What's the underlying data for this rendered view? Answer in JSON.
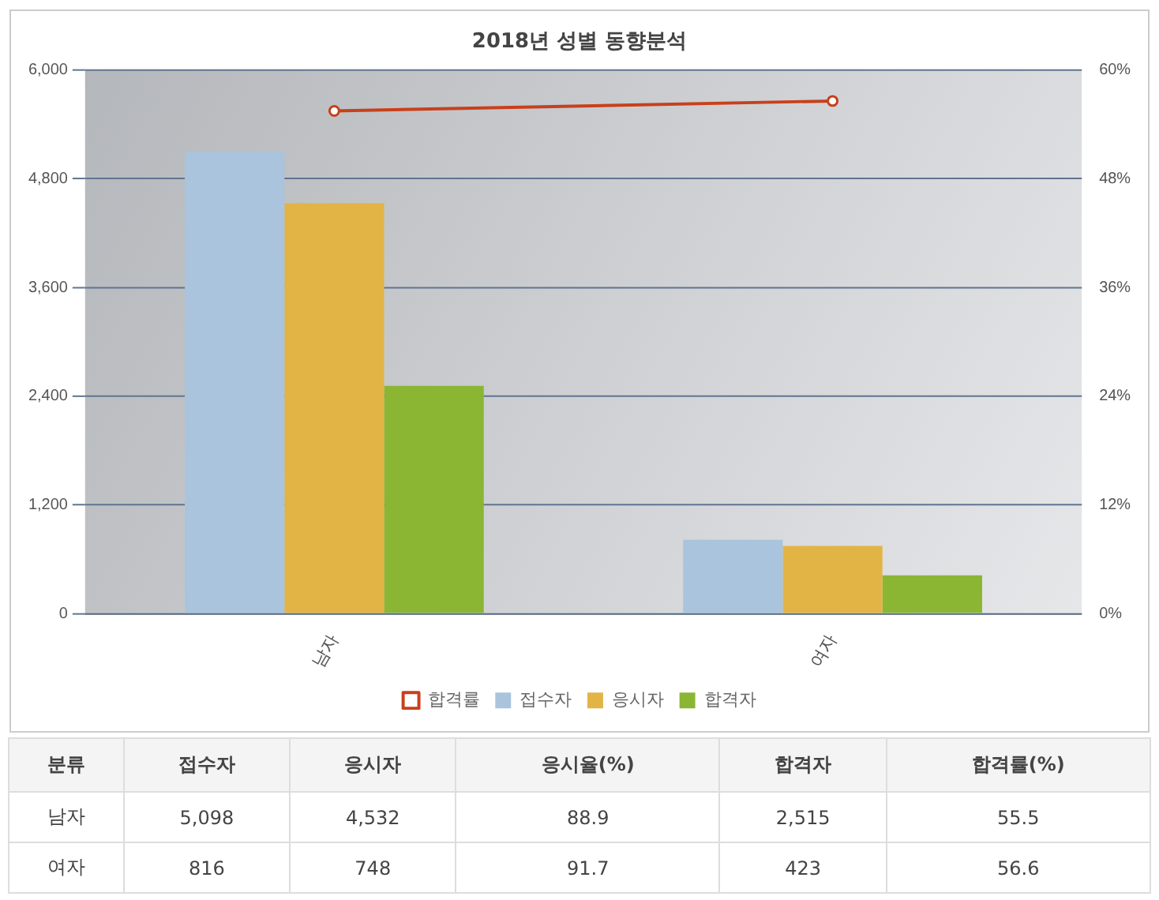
{
  "chart_data": [
    {
      "type": "bar",
      "title": "2018년 성별 동향분석",
      "categories": [
        "남자",
        "여자"
      ],
      "series": [
        {
          "name": "접수자",
          "color": "#a9c4dc",
          "values": [
            5098,
            816
          ]
        },
        {
          "name": "응시자",
          "color": "#e2b446",
          "values": [
            4532,
            748
          ]
        },
        {
          "name": "합격자",
          "color": "#8ab634",
          "values": [
            2515,
            423
          ]
        },
        {
          "name": "합격률",
          "color": "#c8401c",
          "type": "line",
          "axis": "y2",
          "values": [
            55.5,
            56.6
          ]
        }
      ],
      "ylim": [
        0,
        6000
      ],
      "yticks": [
        {
          "value": 0,
          "label": "0"
        },
        {
          "value": 1200,
          "label": "1,200"
        },
        {
          "value": 2400,
          "label": "2,400"
        },
        {
          "value": 3600,
          "label": "3,600"
        },
        {
          "value": 4800,
          "label": "4,800"
        },
        {
          "value": 6000,
          "label": "6,000"
        }
      ],
      "y2lim": [
        0,
        60
      ],
      "y2ticks": [
        {
          "value": 0,
          "label": "0%"
        },
        {
          "value": 12,
          "label": "12%"
        },
        {
          "value": 24,
          "label": "24%"
        },
        {
          "value": 36,
          "label": "36%"
        },
        {
          "value": 48,
          "label": "48%"
        },
        {
          "value": 60,
          "label": "60%"
        }
      ],
      "grid": "y",
      "legend": "bottom",
      "marker": "circle",
      "line_style": "solid"
    },
    {
      "type": "other",
      "ylabel": "분류",
      "categories": [
        "접수자",
        "응시자",
        "응시율(%)",
        "합격자",
        "합격률(%)"
      ],
      "y_categories": [
        "남자",
        "여자"
      ],
      "cell_labels": [
        [
          "5,098",
          "4,532",
          "88.9",
          "2,515",
          "55.5"
        ],
        [
          "816",
          "748",
          "91.7",
          "423",
          "56.6"
        ]
      ]
    }
  ]
}
